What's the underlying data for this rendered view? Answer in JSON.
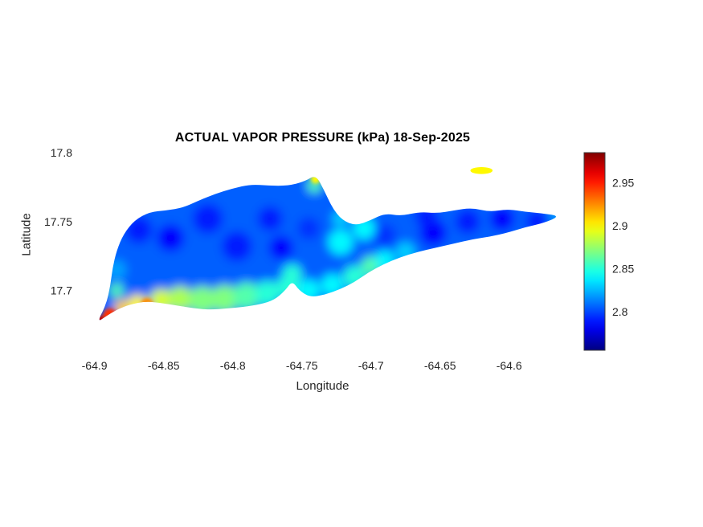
{
  "chart_data": {
    "type": "heatmap",
    "subtype": "filled-contour-geographic-map",
    "title": "ACTUAL VAPOR PRESSURE (kPa) 18-Sep-2025",
    "xlabel": "Longitude",
    "ylabel": "Latitude",
    "x_ticks": [
      -64.9,
      -64.85,
      -64.8,
      -64.75,
      -64.7,
      -64.65,
      -64.6
    ],
    "y_ticks": [
      17.8,
      17.75,
      17.7
    ],
    "xlim": [
      -64.912,
      -64.558
    ],
    "ylim": [
      17.656,
      17.8
    ],
    "grid": false,
    "colormap": "jet",
    "colorbar": {
      "position": "right",
      "ticks": [
        2.8,
        2.85,
        2.9,
        2.95
      ],
      "range": [
        2.755,
        2.985
      ]
    },
    "base_value": 2.805,
    "island_outline": [
      [
        -64.898,
        17.677
      ],
      [
        -64.8915,
        17.69
      ],
      [
        -64.8885,
        17.7035
      ],
      [
        -64.887,
        17.716
      ],
      [
        -64.884,
        17.729
      ],
      [
        -64.879,
        17.741
      ],
      [
        -64.871,
        17.751
      ],
      [
        -64.86,
        17.757
      ],
      [
        -64.848,
        17.758
      ],
      [
        -64.836,
        17.76
      ],
      [
        -64.825,
        17.765
      ],
      [
        -64.813,
        17.77
      ],
      [
        -64.8,
        17.774
      ],
      [
        -64.787,
        17.777
      ],
      [
        -64.774,
        17.776
      ],
      [
        -64.76,
        17.776
      ],
      [
        -64.748,
        17.779
      ],
      [
        -64.74,
        17.784
      ],
      [
        -64.734,
        17.773
      ],
      [
        -64.728,
        17.76
      ],
      [
        -64.721,
        17.751
      ],
      [
        -64.711,
        17.747
      ],
      [
        -64.7,
        17.751
      ],
      [
        -64.69,
        17.756
      ],
      [
        -64.678,
        17.754
      ],
      [
        -64.665,
        17.757
      ],
      [
        -64.652,
        17.756
      ],
      [
        -64.64,
        17.758
      ],
      [
        -64.627,
        17.76
      ],
      [
        -64.614,
        17.757
      ],
      [
        -64.601,
        17.759
      ],
      [
        -64.588,
        17.757
      ],
      [
        -64.576,
        17.756
      ],
      [
        -64.563,
        17.754
      ],
      [
        -64.575,
        17.749
      ],
      [
        -64.588,
        17.746
      ],
      [
        -64.601,
        17.742
      ],
      [
        -64.614,
        17.739
      ],
      [
        -64.627,
        17.737
      ],
      [
        -64.64,
        17.734
      ],
      [
        -64.653,
        17.731
      ],
      [
        -64.666,
        17.728
      ],
      [
        -64.679,
        17.724
      ],
      [
        -64.691,
        17.719
      ],
      [
        -64.702,
        17.713
      ],
      [
        -64.712,
        17.706
      ],
      [
        -64.722,
        17.701
      ],
      [
        -64.733,
        17.697
      ],
      [
        -64.744,
        17.695
      ],
      [
        -64.752,
        17.7
      ],
      [
        -64.757,
        17.707
      ],
      [
        -64.762,
        17.7
      ],
      [
        -64.77,
        17.693
      ],
      [
        -64.78,
        17.69
      ],
      [
        -64.792,
        17.688
      ],
      [
        -64.804,
        17.687
      ],
      [
        -64.816,
        17.686
      ],
      [
        -64.828,
        17.687
      ],
      [
        -64.84,
        17.689
      ],
      [
        -64.852,
        17.691
      ],
      [
        -64.863,
        17.692
      ],
      [
        -64.874,
        17.69
      ],
      [
        -64.884,
        17.686
      ],
      [
        -64.892,
        17.681
      ]
    ],
    "islet": {
      "cx": -64.62,
      "cy": 17.787,
      "rx": 0.008,
      "ry": 0.0025,
      "value": 2.9
    },
    "points_main": [
      [
        -64.868,
        17.744,
        2.79,
        0.01
      ],
      [
        -64.845,
        17.738,
        2.785,
        0.01
      ],
      [
        -64.818,
        17.752,
        2.79,
        0.011
      ],
      [
        -64.797,
        17.732,
        2.79,
        0.011
      ],
      [
        -64.765,
        17.731,
        2.785,
        0.009
      ],
      [
        -64.773,
        17.752,
        2.79,
        0.009
      ],
      [
        -64.745,
        17.745,
        2.795,
        0.008
      ],
      [
        -64.655,
        17.742,
        2.785,
        0.01
      ],
      [
        -64.63,
        17.75,
        2.79,
        0.009
      ],
      [
        -64.605,
        17.752,
        2.785,
        0.009
      ],
      [
        -64.58,
        17.75,
        2.79,
        0.008
      ],
      [
        -64.66,
        17.754,
        2.79,
        0.008
      ],
      [
        -64.69,
        17.74,
        2.795,
        0.008
      ],
      [
        -64.757,
        17.712,
        2.85,
        0.007
      ],
      [
        -64.722,
        17.735,
        2.84,
        0.009
      ],
      [
        -64.705,
        17.745,
        2.84,
        0.008
      ],
      [
        -64.722,
        17.752,
        2.83,
        0.006
      ],
      [
        -64.675,
        17.728,
        2.83,
        0.007
      ],
      [
        -64.7,
        17.718,
        2.86,
        0.007
      ],
      [
        -64.69,
        17.722,
        2.84,
        0.007
      ],
      [
        -64.566,
        17.754,
        2.82,
        0.005
      ],
      [
        -64.884,
        17.715,
        2.82,
        0.007
      ],
      [
        -64.741,
        17.776,
        2.86,
        0.005
      ],
      [
        -64.884,
        17.7,
        2.86,
        0.005
      ],
      [
        -64.88,
        17.687,
        2.91,
        0.006
      ],
      [
        -64.869,
        17.69,
        2.9,
        0.007
      ],
      [
        -64.852,
        17.693,
        2.89,
        0.008
      ],
      [
        -64.838,
        17.694,
        2.88,
        0.009
      ],
      [
        -64.822,
        17.693,
        2.87,
        0.01
      ],
      [
        -64.806,
        17.694,
        2.87,
        0.01
      ],
      [
        -64.79,
        17.696,
        2.86,
        0.01
      ],
      [
        -64.775,
        17.698,
        2.85,
        0.009
      ],
      [
        -64.76,
        17.703,
        2.85,
        0.008
      ],
      [
        -64.745,
        17.7,
        2.84,
        0.008
      ],
      [
        -64.728,
        17.704,
        2.84,
        0.008
      ],
      [
        -64.712,
        17.71,
        2.85,
        0.008
      ]
    ],
    "points_sharp": [
      [
        -64.896,
        17.678,
        2.97,
        0.004
      ],
      [
        -64.889,
        17.682,
        2.945,
        0.005
      ],
      [
        -64.862,
        17.69,
        2.925,
        0.0045
      ],
      [
        -64.74,
        17.781,
        2.9,
        0.0035
      ]
    ]
  }
}
